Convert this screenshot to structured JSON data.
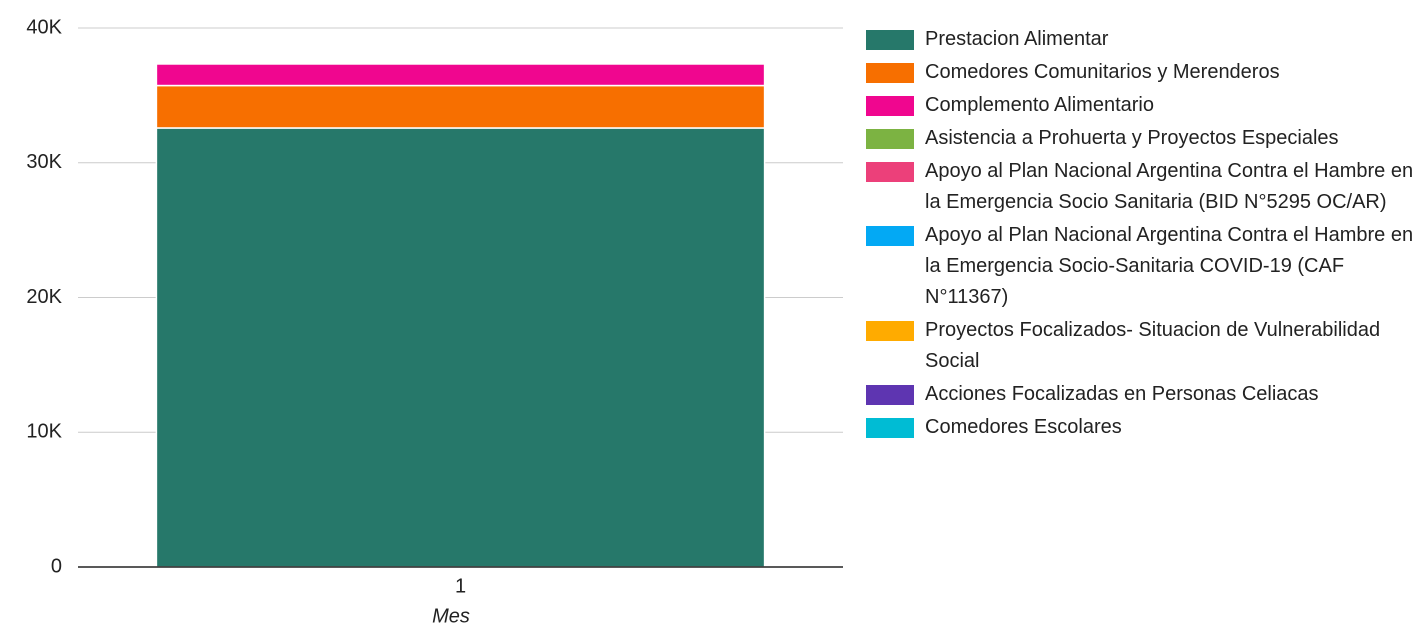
{
  "chart_data": {
    "type": "stacked_bar",
    "categories": [
      "1"
    ],
    "x_label": "Mes",
    "series": [
      {
        "name": "Prestacion Alimentar",
        "color": "#26786a",
        "values": [
          32580
        ]
      },
      {
        "name": "Comedores Comunitarios y Merenderos",
        "color": "#f76f00",
        "values": [
          3150
        ]
      },
      {
        "name": "Complemento Alimentario",
        "color": "#f0068f",
        "values": [
          1600
        ]
      },
      {
        "name": "Asistencia a Prohuerta y Proyectos Especiales",
        "color": "#7cb342",
        "values": [
          0
        ]
      },
      {
        "name": "Apoyo al Plan Nacional Argentina Contra el Hambre en la Emergencia Socio Sanitaria (BID N°5295 OC/AR)",
        "color": "#ec407a",
        "values": [
          0
        ]
      },
      {
        "name": "Apoyo al Plan Nacional Argentina Contra el Hambre en la Emergencia Socio-Sanitaria COVID-19 (CAF N°11367)",
        "color": "#03a9f4",
        "values": [
          0
        ]
      },
      {
        "name": "Proyectos Focalizados- Situacion de Vulnerabilidad Social",
        "color": "#ffab00",
        "values": [
          0
        ]
      },
      {
        "name": "Acciones Focalizadas en Personas Celiacas",
        "color": "#5e35b1",
        "values": [
          0
        ]
      },
      {
        "name": "Comedores Escolares",
        "color": "#00bcd4",
        "values": [
          0
        ]
      }
    ],
    "ylim": [
      0,
      40000
    ],
    "yticks": [
      0,
      {
        "value": 10000,
        "label": "10K"
      },
      {
        "value": 20000,
        "label": "20K"
      },
      {
        "value": 30000,
        "label": "30K"
      },
      {
        "value": 40000,
        "label": "40K"
      }
    ],
    "grid": true,
    "legend": "right"
  }
}
